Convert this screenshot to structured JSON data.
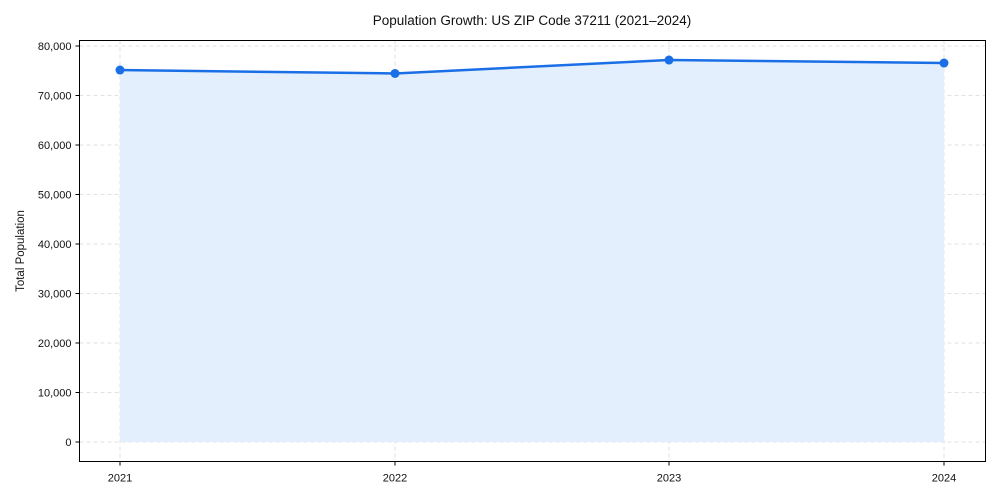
{
  "chart_data": {
    "type": "area",
    "title": "Population Growth: US ZIP Code 37211 (2021–2024)",
    "xlabel": "",
    "ylabel": "Total Population",
    "categories": [
      "2021",
      "2022",
      "2023",
      "2024"
    ],
    "series": [
      {
        "name": "Total Population",
        "values": [
          75150,
          74450,
          77170,
          76560
        ]
      }
    ],
    "ylim": [
      -4000,
      82000
    ],
    "yticks": [
      0,
      10000,
      20000,
      30000,
      40000,
      50000,
      60000,
      70000,
      80000
    ],
    "ytick_labels": [
      "0",
      "10,000",
      "20,000",
      "30,000",
      "40,000",
      "50,000",
      "60,000",
      "70,000",
      "80,000"
    ],
    "grid": true,
    "legend": "none",
    "colors": {
      "line": "#1a6fe6",
      "fill": "#e3eefd",
      "grid": "#d9d9d9",
      "axis": "#000000"
    }
  }
}
